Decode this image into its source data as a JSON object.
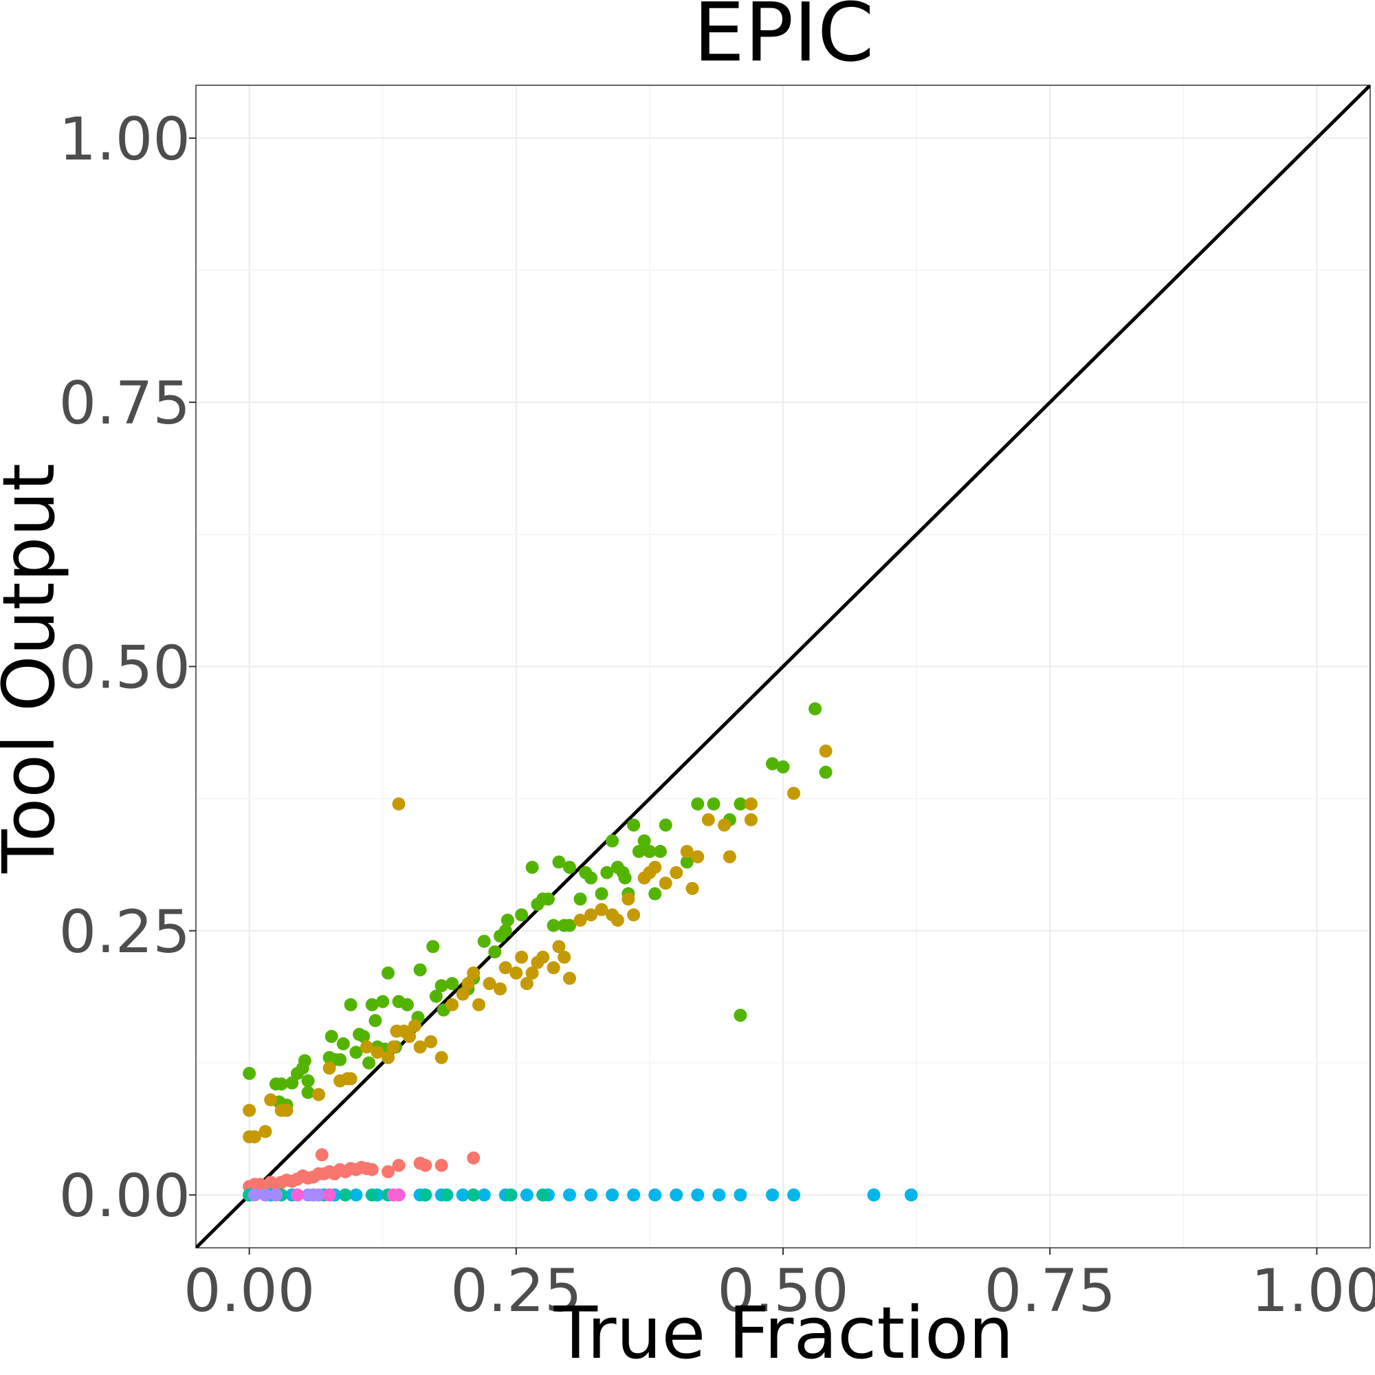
{
  "chart_data": {
    "type": "scatter",
    "title": "EPIC",
    "xlabel": "True Fraction",
    "ylabel": "Tool Output",
    "xlim": [
      -0.05,
      1.05
    ],
    "ylim": [
      -0.05,
      1.05
    ],
    "x_ticks": [
      0,
      0.25,
      0.5,
      0.75,
      1
    ],
    "y_ticks": [
      0,
      0.25,
      0.5,
      0.75,
      1
    ],
    "x_tick_labels": [
      "0.00",
      "0.25",
      "0.50",
      "0.75",
      "1.00"
    ],
    "y_tick_labels": [
      "0.00",
      "0.25",
      "0.50",
      "0.75",
      "1.00"
    ],
    "grid": true,
    "reference_line": "y = x",
    "legend": "none",
    "series": [
      {
        "color": "#53B400",
        "points": [
          [
            0.0,
            0.115
          ],
          [
            0.025,
            0.105
          ],
          [
            0.03,
            0.105
          ],
          [
            0.028,
            0.088
          ],
          [
            0.035,
            0.085
          ],
          [
            0.04,
            0.106
          ],
          [
            0.045,
            0.115
          ],
          [
            0.05,
            0.12
          ],
          [
            0.052,
            0.127
          ],
          [
            0.055,
            0.108
          ],
          [
            0.055,
            0.097
          ],
          [
            0.075,
            0.13
          ],
          [
            0.077,
            0.15
          ],
          [
            0.08,
            0.128
          ],
          [
            0.085,
            0.128
          ],
          [
            0.088,
            0.143
          ],
          [
            0.095,
            0.18
          ],
          [
            0.1,
            0.135
          ],
          [
            0.103,
            0.152
          ],
          [
            0.107,
            0.15
          ],
          [
            0.112,
            0.125
          ],
          [
            0.115,
            0.18
          ],
          [
            0.118,
            0.165
          ],
          [
            0.12,
            0.14
          ],
          [
            0.125,
            0.183
          ],
          [
            0.127,
            0.138
          ],
          [
            0.13,
            0.21
          ],
          [
            0.135,
            0.14
          ],
          [
            0.137,
            0.14
          ],
          [
            0.14,
            0.183
          ],
          [
            0.148,
            0.18
          ],
          [
            0.158,
            0.168
          ],
          [
            0.16,
            0.213
          ],
          [
            0.172,
            0.235
          ],
          [
            0.175,
            0.188
          ],
          [
            0.18,
            0.198
          ],
          [
            0.182,
            0.175
          ],
          [
            0.19,
            0.2
          ],
          [
            0.205,
            0.195
          ],
          [
            0.21,
            0.205
          ],
          [
            0.22,
            0.24
          ],
          [
            0.23,
            0.23
          ],
          [
            0.235,
            0.245
          ],
          [
            0.24,
            0.25
          ],
          [
            0.242,
            0.26
          ],
          [
            0.255,
            0.265
          ],
          [
            0.265,
            0.31
          ],
          [
            0.27,
            0.275
          ],
          [
            0.275,
            0.28
          ],
          [
            0.28,
            0.28
          ],
          [
            0.285,
            0.255
          ],
          [
            0.29,
            0.315
          ],
          [
            0.295,
            0.255
          ],
          [
            0.3,
            0.255
          ],
          [
            0.3,
            0.31
          ],
          [
            0.31,
            0.28
          ],
          [
            0.315,
            0.305
          ],
          [
            0.32,
            0.3
          ],
          [
            0.33,
            0.285
          ],
          [
            0.335,
            0.305
          ],
          [
            0.34,
            0.335
          ],
          [
            0.345,
            0.31
          ],
          [
            0.35,
            0.305
          ],
          [
            0.352,
            0.3
          ],
          [
            0.355,
            0.285
          ],
          [
            0.36,
            0.35
          ],
          [
            0.365,
            0.325
          ],
          [
            0.37,
            0.335
          ],
          [
            0.375,
            0.325
          ],
          [
            0.38,
            0.285
          ],
          [
            0.385,
            0.325
          ],
          [
            0.39,
            0.35
          ],
          [
            0.41,
            0.315
          ],
          [
            0.42,
            0.37
          ],
          [
            0.435,
            0.37
          ],
          [
            0.45,
            0.355
          ],
          [
            0.46,
            0.37
          ],
          [
            0.46,
            0.17
          ],
          [
            0.49,
            0.408
          ],
          [
            0.5,
            0.405
          ],
          [
            0.53,
            0.46
          ],
          [
            0.54,
            0.4
          ]
        ]
      },
      {
        "color": "#C49A00",
        "points": [
          [
            0.0,
            0.08
          ],
          [
            0.0,
            0.055
          ],
          [
            0.005,
            0.055
          ],
          [
            0.015,
            0.06
          ],
          [
            0.02,
            0.09
          ],
          [
            0.03,
            0.08
          ],
          [
            0.035,
            0.08
          ],
          [
            0.065,
            0.095
          ],
          [
            0.075,
            0.12
          ],
          [
            0.085,
            0.108
          ],
          [
            0.092,
            0.11
          ],
          [
            0.095,
            0.11
          ],
          [
            0.11,
            0.14
          ],
          [
            0.12,
            0.135
          ],
          [
            0.13,
            0.13
          ],
          [
            0.135,
            0.14
          ],
          [
            0.138,
            0.155
          ],
          [
            0.14,
            0.37
          ],
          [
            0.145,
            0.155
          ],
          [
            0.15,
            0.15
          ],
          [
            0.155,
            0.16
          ],
          [
            0.16,
            0.14
          ],
          [
            0.17,
            0.145
          ],
          [
            0.18,
            0.13
          ],
          [
            0.19,
            0.18
          ],
          [
            0.2,
            0.19
          ],
          [
            0.205,
            0.2
          ],
          [
            0.21,
            0.21
          ],
          [
            0.215,
            0.18
          ],
          [
            0.225,
            0.2
          ],
          [
            0.235,
            0.195
          ],
          [
            0.24,
            0.215
          ],
          [
            0.25,
            0.21
          ],
          [
            0.255,
            0.225
          ],
          [
            0.26,
            0.2
          ],
          [
            0.265,
            0.21
          ],
          [
            0.27,
            0.22
          ],
          [
            0.275,
            0.225
          ],
          [
            0.285,
            0.215
          ],
          [
            0.29,
            0.235
          ],
          [
            0.295,
            0.225
          ],
          [
            0.3,
            0.205
          ],
          [
            0.31,
            0.26
          ],
          [
            0.32,
            0.265
          ],
          [
            0.33,
            0.27
          ],
          [
            0.34,
            0.265
          ],
          [
            0.345,
            0.26
          ],
          [
            0.355,
            0.28
          ],
          [
            0.36,
            0.265
          ],
          [
            0.37,
            0.3
          ],
          [
            0.375,
            0.305
          ],
          [
            0.38,
            0.31
          ],
          [
            0.39,
            0.295
          ],
          [
            0.4,
            0.305
          ],
          [
            0.41,
            0.325
          ],
          [
            0.415,
            0.29
          ],
          [
            0.42,
            0.32
          ],
          [
            0.43,
            0.355
          ],
          [
            0.445,
            0.35
          ],
          [
            0.45,
            0.32
          ],
          [
            0.47,
            0.37
          ],
          [
            0.47,
            0.355
          ],
          [
            0.51,
            0.38
          ],
          [
            0.54,
            0.42
          ]
        ]
      },
      {
        "color": "#F8766D",
        "points": [
          [
            0.0,
            0.008
          ],
          [
            0.005,
            0.01
          ],
          [
            0.01,
            0.01
          ],
          [
            0.015,
            0.008
          ],
          [
            0.02,
            0.012
          ],
          [
            0.025,
            0.01
          ],
          [
            0.03,
            0.012
          ],
          [
            0.035,
            0.014
          ],
          [
            0.04,
            0.013
          ],
          [
            0.045,
            0.015
          ],
          [
            0.05,
            0.018
          ],
          [
            0.055,
            0.016
          ],
          [
            0.06,
            0.017
          ],
          [
            0.065,
            0.02
          ],
          [
            0.068,
            0.038
          ],
          [
            0.07,
            0.02
          ],
          [
            0.075,
            0.022
          ],
          [
            0.08,
            0.02
          ],
          [
            0.085,
            0.024
          ],
          [
            0.09,
            0.022
          ],
          [
            0.095,
            0.025
          ],
          [
            0.1,
            0.024
          ],
          [
            0.105,
            0.026
          ],
          [
            0.11,
            0.025
          ],
          [
            0.115,
            0.024
          ],
          [
            0.13,
            0.022
          ],
          [
            0.14,
            0.028
          ],
          [
            0.16,
            0.03
          ],
          [
            0.165,
            0.028
          ],
          [
            0.18,
            0.028
          ],
          [
            0.21,
            0.035
          ]
        ]
      },
      {
        "color": "#00B6EB",
        "points": [
          [
            0.0,
            0.0
          ],
          [
            0.02,
            0.0
          ],
          [
            0.04,
            0.0
          ],
          [
            0.06,
            0.0
          ],
          [
            0.08,
            0.0
          ],
          [
            0.1,
            0.0
          ],
          [
            0.12,
            0.0
          ],
          [
            0.14,
            0.0
          ],
          [
            0.16,
            0.0
          ],
          [
            0.18,
            0.0
          ],
          [
            0.2,
            0.0
          ],
          [
            0.22,
            0.0
          ],
          [
            0.24,
            0.0
          ],
          [
            0.26,
            0.0
          ],
          [
            0.28,
            0.0
          ],
          [
            0.3,
            0.0
          ],
          [
            0.32,
            0.0
          ],
          [
            0.34,
            0.0
          ],
          [
            0.36,
            0.0
          ],
          [
            0.38,
            0.0
          ],
          [
            0.4,
            0.0
          ],
          [
            0.42,
            0.0
          ],
          [
            0.44,
            0.0
          ],
          [
            0.46,
            0.0
          ],
          [
            0.49,
            0.0
          ],
          [
            0.51,
            0.0
          ],
          [
            0.585,
            0.0
          ],
          [
            0.62,
            0.0
          ]
        ]
      },
      {
        "color": "#00C094",
        "points": [
          [
            0.0,
            0.0
          ],
          [
            0.03,
            0.0
          ],
          [
            0.07,
            0.0
          ],
          [
            0.09,
            0.0
          ],
          [
            0.115,
            0.0
          ],
          [
            0.13,
            0.0
          ],
          [
            0.165,
            0.0
          ],
          [
            0.185,
            0.0
          ],
          [
            0.21,
            0.0
          ],
          [
            0.245,
            0.0
          ],
          [
            0.275,
            0.0
          ]
        ]
      },
      {
        "color": "#A58AFF",
        "points": [
          [
            0.005,
            0.0
          ],
          [
            0.015,
            0.0
          ],
          [
            0.025,
            0.0
          ],
          [
            0.055,
            0.0
          ],
          [
            0.06,
            0.0
          ],
          [
            0.065,
            0.0
          ],
          [
            0.075,
            0.0
          ]
        ]
      },
      {
        "color": "#FB61D7",
        "points": [
          [
            0.045,
            0.0
          ],
          [
            0.075,
            0.0
          ],
          [
            0.135,
            0.0
          ],
          [
            0.14,
            0.0
          ]
        ]
      }
    ]
  }
}
